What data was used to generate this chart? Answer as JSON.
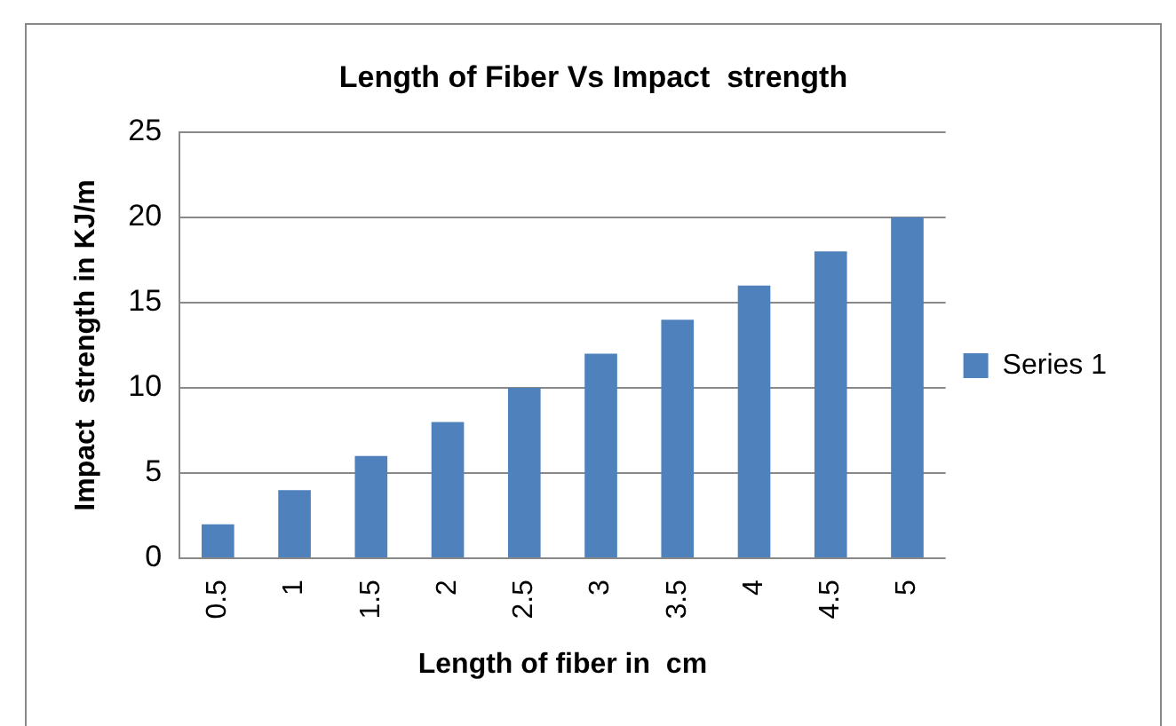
{
  "chart_data": {
    "type": "bar",
    "title": "Length of Fiber Vs Impact  strength",
    "xlabel": "Length of fiber in  cm",
    "ylabel": "Impact  strength in KJ/m",
    "categories": [
      "0.5",
      "1",
      "1.5",
      "2",
      "2.5",
      "3",
      "3.5",
      "4",
      "4.5",
      "5"
    ],
    "series": [
      {
        "name": "Series 1",
        "color": "#4f81bd",
        "values": [
          2,
          4,
          6,
          8,
          10,
          12,
          14,
          16,
          18,
          20
        ]
      }
    ],
    "ylim": [
      0,
      25
    ],
    "yticks": [
      0,
      5,
      10,
      15,
      20,
      25
    ],
    "grid": "y",
    "legend": "right"
  }
}
